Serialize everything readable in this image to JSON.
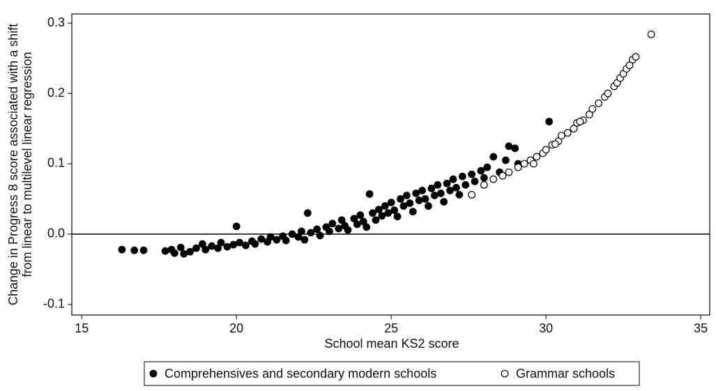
{
  "chart_data": {
    "type": "scatter",
    "xlabel": "School mean KS2 score",
    "ylabel": [
      "Change in Progress 8 score associated with a shift",
      "from linear to multilevel linear regression"
    ],
    "xlim": [
      14.68,
      35.29
    ],
    "ylim": [
      -0.115,
      0.313
    ],
    "xticks": [
      15,
      20,
      25,
      30,
      35
    ],
    "yticks": [
      -0.1,
      {
        "value": 0,
        "label": "0.0"
      },
      0.1,
      0.2,
      0.3
    ],
    "refline": 0,
    "legend": "bottom",
    "series": [
      {
        "name": "Comprehensives and secondary modern schools",
        "color": "#000000",
        "marker": "filled",
        "x": [
          16.3,
          16.7,
          17.0,
          17.7,
          17.9,
          18.0,
          18.2,
          18.3,
          18.5,
          18.7,
          18.9,
          19.0,
          19.2,
          19.4,
          19.5,
          19.7,
          19.9,
          20.0,
          20.1,
          20.3,
          20.5,
          20.6,
          20.8,
          21.0,
          21.1,
          21.3,
          21.5,
          21.6,
          21.8,
          22.0,
          22.1,
          22.2,
          22.3,
          22.4,
          22.6,
          22.7,
          22.9,
          23.0,
          23.1,
          23.3,
          23.4,
          23.5,
          23.6,
          23.8,
          23.9,
          24.0,
          24.1,
          24.2,
          24.3,
          24.4,
          24.5,
          24.6,
          24.7,
          24.8,
          24.9,
          25.0,
          25.1,
          25.2,
          25.3,
          25.4,
          25.5,
          25.6,
          25.7,
          25.8,
          25.9,
          26.0,
          26.1,
          26.2,
          26.3,
          26.4,
          26.5,
          26.6,
          26.7,
          26.8,
          26.9,
          27.0,
          27.1,
          27.2,
          27.3,
          27.4,
          27.6,
          27.7,
          27.9,
          28.0,
          28.1,
          28.3,
          28.5,
          28.7,
          28.8,
          29.0,
          29.1,
          30.1
        ],
        "values": [
          -0.022,
          -0.023,
          -0.023,
          -0.024,
          -0.022,
          -0.027,
          -0.019,
          -0.028,
          -0.025,
          -0.02,
          -0.014,
          -0.022,
          -0.017,
          -0.02,
          -0.012,
          -0.018,
          -0.015,
          0.011,
          -0.012,
          -0.016,
          -0.01,
          -0.014,
          -0.007,
          -0.011,
          -0.004,
          -0.008,
          -0.003,
          -0.009,
          0.0,
          -0.004,
          0.004,
          -0.008,
          0.03,
          0.002,
          0.007,
          -0.002,
          0.01,
          0.004,
          0.015,
          0.008,
          0.02,
          0.012,
          0.006,
          0.022,
          0.014,
          0.027,
          0.018,
          0.01,
          0.057,
          0.03,
          0.02,
          0.035,
          0.026,
          0.04,
          0.03,
          0.045,
          0.034,
          0.025,
          0.05,
          0.04,
          0.055,
          0.044,
          0.032,
          0.058,
          0.048,
          0.062,
          0.05,
          0.04,
          0.065,
          0.055,
          0.07,
          0.058,
          0.046,
          0.072,
          0.062,
          0.078,
          0.066,
          0.056,
          0.082,
          0.07,
          0.085,
          0.075,
          0.09,
          0.08,
          0.095,
          0.11,
          0.088,
          0.105,
          0.125,
          0.122,
          0.1,
          0.16
        ]
      },
      {
        "name": "Grammar schools",
        "color": "#000000",
        "marker": "hollow",
        "x": [
          27.6,
          28.0,
          28.3,
          28.6,
          28.8,
          29.1,
          29.3,
          29.5,
          29.7,
          29.9,
          30.0,
          30.2,
          30.4,
          30.5,
          30.7,
          30.9,
          31.0,
          31.2,
          31.4,
          31.5,
          31.7,
          31.9,
          32.0,
          32.2,
          32.3,
          32.4,
          32.5,
          32.6,
          32.7,
          32.8,
          32.9,
          33.4,
          29.6,
          30.3,
          31.1
        ],
        "values": [
          0.056,
          0.07,
          0.078,
          0.083,
          0.088,
          0.095,
          0.1,
          0.105,
          0.11,
          0.115,
          0.12,
          0.127,
          0.132,
          0.14,
          0.144,
          0.15,
          0.158,
          0.162,
          0.17,
          0.178,
          0.186,
          0.195,
          0.2,
          0.21,
          0.215,
          0.222,
          0.228,
          0.235,
          0.24,
          0.248,
          0.252,
          0.284,
          0.1,
          0.128,
          0.16
        ]
      }
    ]
  }
}
